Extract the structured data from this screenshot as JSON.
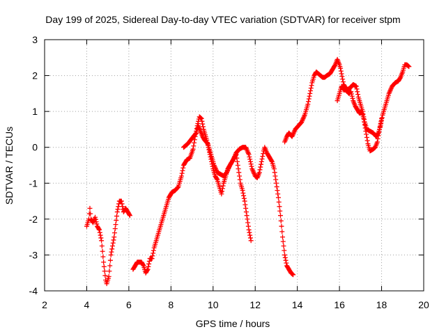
{
  "chart_data": {
    "type": "scatter",
    "title": "Day 199 of 2025, Sidereal Day-to-day VTEC variation (SDTVAR) for receiver stpm",
    "xlabel": "GPS time / hours",
    "ylabel": "SDTVAR / TECUs",
    "xlim": [
      2,
      20
    ],
    "ylim": [
      -4,
      3
    ],
    "xticks": [
      2,
      4,
      6,
      8,
      10,
      12,
      14,
      16,
      18,
      20
    ],
    "yticks": [
      -4,
      -3,
      -2,
      -1,
      0,
      1,
      2,
      3
    ],
    "grid": true,
    "marker": "+",
    "color": "#ff0000",
    "segments": [
      [
        [
          4.0,
          -2.2
        ],
        [
          4.1,
          -2.0
        ],
        [
          4.15,
          -1.7
        ],
        [
          4.2,
          -2.0
        ],
        [
          4.3,
          -2.1
        ],
        [
          4.4,
          -1.95
        ],
        [
          4.5,
          -2.2
        ],
        [
          4.6,
          -2.3
        ],
        [
          4.7,
          -2.6
        ],
        [
          4.8,
          -3.2
        ],
        [
          4.9,
          -3.7
        ],
        [
          4.95,
          -3.8
        ],
        [
          5.05,
          -3.6
        ],
        [
          5.15,
          -3.0
        ],
        [
          5.3,
          -2.5
        ],
        [
          5.45,
          -1.8
        ],
        [
          5.55,
          -1.5
        ],
        [
          5.65,
          -1.5
        ],
        [
          5.75,
          -1.8
        ],
        [
          5.85,
          -1.7
        ],
        [
          5.95,
          -1.8
        ],
        [
          6.05,
          -1.9
        ]
      ],
      [
        [
          6.2,
          -3.4
        ],
        [
          6.3,
          -3.3
        ],
        [
          6.4,
          -3.2
        ],
        [
          6.5,
          -3.2
        ],
        [
          6.6,
          -3.2
        ],
        [
          6.7,
          -3.3
        ],
        [
          6.8,
          -3.5
        ],
        [
          6.9,
          -3.4
        ],
        [
          7.0,
          -3.1
        ],
        [
          7.1,
          -3.1
        ],
        [
          7.2,
          -2.8
        ],
        [
          7.3,
          -2.6
        ],
        [
          7.45,
          -2.3
        ],
        [
          7.6,
          -2.0
        ],
        [
          7.75,
          -1.7
        ],
        [
          7.9,
          -1.4
        ],
        [
          8.05,
          -1.25
        ],
        [
          8.2,
          -1.2
        ],
        [
          8.35,
          -1.1
        ],
        [
          8.5,
          -0.8
        ],
        [
          8.6,
          -0.5
        ],
        [
          8.75,
          -0.35
        ],
        [
          8.9,
          -0.3
        ],
        [
          9.05,
          -0.05
        ],
        [
          9.15,
          0.3
        ],
        [
          9.25,
          0.6
        ],
        [
          9.35,
          0.85
        ],
        [
          9.45,
          0.8
        ],
        [
          9.55,
          0.5
        ],
        [
          9.7,
          0.2
        ],
        [
          9.85,
          -0.2
        ],
        [
          10.0,
          -0.6
        ],
        [
          10.1,
          -0.8
        ],
        [
          10.2,
          -0.9
        ],
        [
          10.3,
          -1.1
        ],
        [
          10.4,
          -1.3
        ],
        [
          10.5,
          -1.0
        ],
        [
          10.6,
          -0.8
        ],
        [
          10.7,
          -0.6
        ],
        [
          10.8,
          -0.5
        ],
        [
          10.9,
          -0.4
        ],
        [
          11.0,
          -0.3
        ],
        [
          11.1,
          -0.2
        ],
        [
          11.2,
          -0.6
        ],
        [
          11.3,
          -1.0
        ],
        [
          11.4,
          -1.2
        ],
        [
          11.5,
          -1.5
        ],
        [
          11.6,
          -1.9
        ],
        [
          11.7,
          -2.3
        ],
        [
          11.8,
          -2.6
        ]
      ],
      [
        [
          8.6,
          0.0
        ],
        [
          8.8,
          0.1
        ],
        [
          9.0,
          0.25
        ],
        [
          9.2,
          0.4
        ],
        [
          9.3,
          0.6
        ],
        [
          9.5,
          0.3
        ],
        [
          9.6,
          0.2
        ],
        [
          9.75,
          0.1
        ],
        [
          9.9,
          -0.2
        ],
        [
          10.05,
          -0.5
        ],
        [
          10.2,
          -0.7
        ],
        [
          10.35,
          -0.75
        ],
        [
          10.5,
          -0.8
        ],
        [
          10.65,
          -0.7
        ],
        [
          10.8,
          -0.5
        ],
        [
          10.95,
          -0.35
        ],
        [
          11.1,
          -0.15
        ],
        [
          11.25,
          -0.05
        ],
        [
          11.4,
          0.0
        ],
        [
          11.55,
          0.0
        ],
        [
          11.7,
          -0.2
        ],
        [
          11.85,
          -0.6
        ],
        [
          12.0,
          -0.8
        ],
        [
          12.1,
          -0.85
        ],
        [
          12.2,
          -0.7
        ],
        [
          12.3,
          -0.4
        ],
        [
          12.4,
          -0.1
        ],
        [
          12.45,
          0.0
        ],
        [
          12.55,
          -0.15
        ],
        [
          12.7,
          -0.3
        ],
        [
          12.8,
          -0.4
        ],
        [
          12.9,
          -0.6
        ],
        [
          13.0,
          -1.0
        ],
        [
          13.1,
          -1.4
        ],
        [
          13.2,
          -1.9
        ],
        [
          13.3,
          -2.5
        ],
        [
          13.4,
          -3.0
        ],
        [
          13.5,
          -3.3
        ],
        [
          13.6,
          -3.4
        ],
        [
          13.7,
          -3.5
        ],
        [
          13.8,
          -3.55
        ]
      ],
      [
        [
          13.4,
          0.15
        ],
        [
          13.5,
          0.3
        ],
        [
          13.6,
          0.4
        ],
        [
          13.75,
          0.3
        ],
        [
          13.9,
          0.5
        ],
        [
          14.05,
          0.6
        ],
        [
          14.2,
          0.7
        ],
        [
          14.35,
          0.9
        ],
        [
          14.5,
          1.2
        ],
        [
          14.6,
          1.5
        ],
        [
          14.7,
          1.8
        ],
        [
          14.8,
          2.0
        ],
        [
          14.9,
          2.1
        ],
        [
          15.0,
          2.05
        ],
        [
          15.1,
          2.0
        ],
        [
          15.2,
          1.95
        ],
        [
          15.3,
          1.95
        ],
        [
          15.4,
          2.0
        ],
        [
          15.55,
          2.05
        ],
        [
          15.7,
          2.2
        ],
        [
          15.8,
          2.3
        ],
        [
          15.9,
          2.45
        ],
        [
          16.0,
          2.3
        ],
        [
          16.05,
          2.2
        ],
        [
          16.15,
          1.9
        ],
        [
          16.2,
          1.75
        ],
        [
          16.35,
          1.6
        ],
        [
          16.5,
          1.65
        ],
        [
          16.65,
          1.75
        ],
        [
          16.8,
          1.7
        ],
        [
          16.9,
          1.4
        ],
        [
          17.0,
          1.2
        ],
        [
          17.1,
          1.0
        ],
        [
          17.2,
          0.7
        ],
        [
          17.3,
          0.5
        ],
        [
          17.45,
          0.45
        ],
        [
          17.6,
          0.4
        ],
        [
          17.75,
          0.3
        ],
        [
          17.85,
          0.4
        ],
        [
          17.95,
          0.6
        ],
        [
          18.05,
          0.9
        ],
        [
          18.2,
          1.2
        ],
        [
          18.35,
          1.5
        ],
        [
          18.5,
          1.7
        ],
        [
          18.65,
          1.8
        ],
        [
          18.8,
          1.85
        ],
        [
          18.9,
          1.95
        ],
        [
          19.0,
          2.1
        ],
        [
          19.1,
          2.3
        ],
        [
          19.2,
          2.3
        ],
        [
          19.3,
          2.25
        ]
      ],
      [
        [
          15.9,
          1.3
        ],
        [
          16.0,
          1.5
        ],
        [
          16.1,
          1.7
        ],
        [
          16.2,
          1.6
        ],
        [
          16.3,
          1.6
        ],
        [
          16.45,
          1.5
        ],
        [
          16.55,
          1.55
        ],
        [
          16.65,
          1.3
        ],
        [
          16.75,
          1.15
        ],
        [
          16.85,
          1.05
        ],
        [
          16.95,
          0.95
        ],
        [
          17.05,
          1.0
        ],
        [
          17.15,
          0.8
        ],
        [
          17.25,
          0.45
        ],
        [
          17.35,
          0.1
        ],
        [
          17.45,
          -0.1
        ],
        [
          17.6,
          -0.05
        ],
        [
          17.7,
          0.0
        ],
        [
          17.8,
          0.15
        ],
        [
          17.9,
          0.5
        ],
        [
          18.0,
          0.8
        ]
      ]
    ]
  }
}
